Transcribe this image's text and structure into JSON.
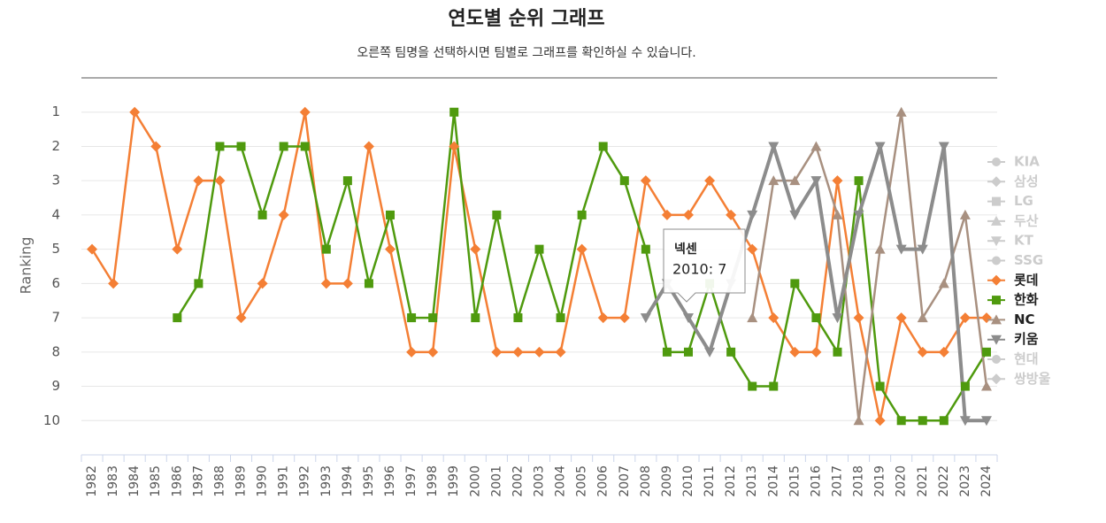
{
  "chart_data": {
    "type": "line",
    "title": "연도별 순위 그래프",
    "subtitle": "오른쪽 팀명을 선택하시면 팀별로 그래프를 확인하실 수 있습니다.",
    "y_label": "Ranking",
    "categories": [
      "1982",
      "1983",
      "1984",
      "1985",
      "1986",
      "1987",
      "1988",
      "1989",
      "1990",
      "1991",
      "1992",
      "1993",
      "1994",
      "1995",
      "1996",
      "1997",
      "1998",
      "1999",
      "2000",
      "2001",
      "2002",
      "2003",
      "2004",
      "2005",
      "2006",
      "2007",
      "2008",
      "2009",
      "2010",
      "2011",
      "2012",
      "2013",
      "2014",
      "2015",
      "2016",
      "2017",
      "2018",
      "2019",
      "2020",
      "2021",
      "2022",
      "2023",
      "2024"
    ],
    "ylim": [
      11,
      0
    ],
    "yticks": [
      1,
      2,
      3,
      4,
      5,
      6,
      7,
      8,
      9,
      10
    ],
    "grid": true,
    "legend": "right",
    "series": [
      {
        "name": "KIA",
        "color": "#cccccc",
        "symbol": "circle",
        "visible": false
      },
      {
        "name": "삼성",
        "color": "#cccccc",
        "symbol": "diamond",
        "visible": false
      },
      {
        "name": "LG",
        "color": "#cccccc",
        "symbol": "square",
        "visible": false
      },
      {
        "name": "두산",
        "color": "#cccccc",
        "symbol": "triangle",
        "visible": false
      },
      {
        "name": "KT",
        "color": "#cccccc",
        "symbol": "triangle-down",
        "visible": false
      },
      {
        "name": "SSG",
        "color": "#cccccc",
        "symbol": "circle",
        "visible": false
      },
      {
        "name": "롯데",
        "color": "#f47f35",
        "symbol": "diamond",
        "visible": true,
        "values": [
          5,
          6,
          1,
          2,
          5,
          3,
          3,
          7,
          6,
          4,
          1,
          6,
          6,
          2,
          5,
          8,
          8,
          2,
          5,
          8,
          8,
          8,
          8,
          5,
          7,
          7,
          3,
          4,
          4,
          3,
          4,
          5,
          7,
          8,
          8,
          3,
          7,
          10,
          7,
          8,
          8,
          7,
          7
        ]
      },
      {
        "name": "한화",
        "color": "#4f9a0e",
        "symbol": "square",
        "visible": true,
        "values": [
          null,
          null,
          null,
          null,
          7,
          6,
          2,
          2,
          4,
          2,
          2,
          5,
          3,
          6,
          4,
          7,
          7,
          1,
          7,
          4,
          7,
          5,
          7,
          4,
          2,
          3,
          5,
          8,
          8,
          6,
          8,
          9,
          9,
          6,
          7,
          8,
          3,
          9,
          10,
          10,
          10,
          9,
          8
        ]
      },
      {
        "name": "NC",
        "color": "#a89080",
        "symbol": "triangle",
        "visible": true,
        "values": [
          null,
          null,
          null,
          null,
          null,
          null,
          null,
          null,
          null,
          null,
          null,
          null,
          null,
          null,
          null,
          null,
          null,
          null,
          null,
          null,
          null,
          null,
          null,
          null,
          null,
          null,
          null,
          null,
          null,
          null,
          null,
          7,
          3,
          3,
          2,
          4,
          10,
          5,
          1,
          7,
          6,
          4,
          9
        ]
      },
      {
        "name": "키움",
        "color": "#8c8c8c",
        "symbol": "triangle-down",
        "visible": true,
        "values": [
          null,
          null,
          null,
          null,
          null,
          null,
          null,
          null,
          null,
          null,
          null,
          null,
          null,
          null,
          null,
          null,
          null,
          null,
          null,
          null,
          null,
          null,
          null,
          null,
          null,
          null,
          7,
          6,
          7,
          8,
          6,
          4,
          2,
          4,
          3,
          7,
          4,
          2,
          5,
          5,
          2,
          10,
          10
        ]
      },
      {
        "name": "현대",
        "color": "#cccccc",
        "symbol": "circle",
        "visible": false
      },
      {
        "name": "쌍방울",
        "color": "#cccccc",
        "symbol": "diamond",
        "visible": false
      }
    ],
    "tooltip": {
      "title": "넥센",
      "text": "2010: 7"
    }
  }
}
